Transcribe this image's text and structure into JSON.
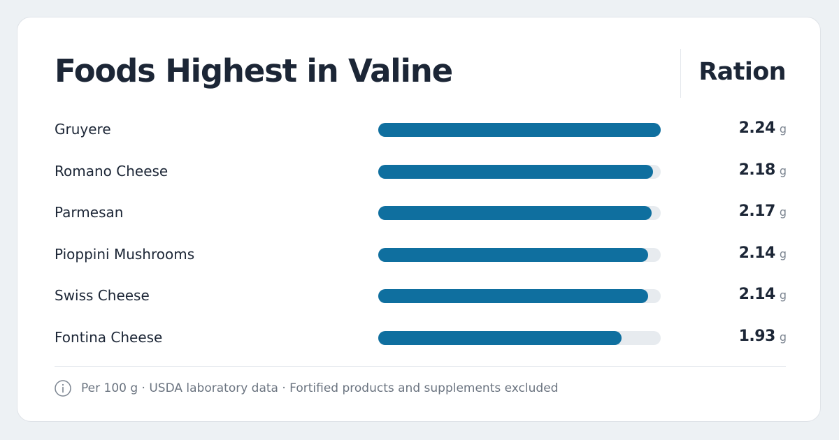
{
  "card": {
    "title": "Foods Highest in Valine",
    "column_header": "Ration",
    "footnote": "Per 100 g · USDA laboratory data · Fortified products and supplements excluded",
    "info_icon": "info-icon"
  },
  "colors": {
    "bar": "#0f6f9f",
    "track": "#e7ebef",
    "text": "#1c2636"
  },
  "chart_data": {
    "type": "bar",
    "orientation": "horizontal",
    "title": "Foods Highest in Valine",
    "categories": [
      "Gruyere",
      "Romano Cheese",
      "Parmesan",
      "Pioppini Mushrooms",
      "Swiss Cheese",
      "Fontina Cheese"
    ],
    "values": [
      2.24,
      2.18,
      2.17,
      2.14,
      2.14,
      1.93
    ],
    "value_labels": [
      "2.24",
      "2.18",
      "2.17",
      "2.14",
      "2.14",
      "1.93"
    ],
    "unit": "g",
    "xlim": [
      0,
      2.24
    ],
    "grid": false,
    "legend": "none"
  }
}
